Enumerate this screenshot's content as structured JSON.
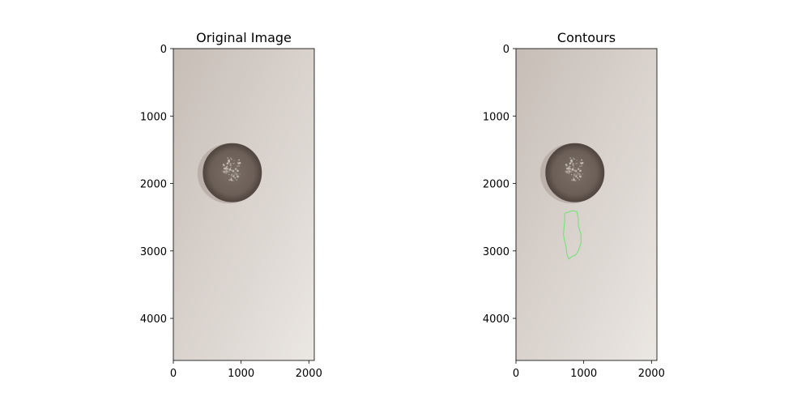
{
  "chart_data": [
    {
      "type": "image",
      "title": "Original Image",
      "xticks": [
        0,
        1000,
        2000
      ],
      "yticks": [
        0,
        1000,
        2000,
        3000,
        4000
      ],
      "xlim": [
        0,
        2080
      ],
      "ylim": [
        4624,
        0
      ],
      "content": {
        "coin": {
          "cx": 870,
          "cy": 1840,
          "r": 430
        },
        "contour": null
      }
    },
    {
      "type": "image",
      "title": "Contours",
      "xticks": [
        0,
        1000,
        2000
      ],
      "yticks": [
        0,
        1000,
        2000,
        3000,
        4000
      ],
      "xlim": [
        0,
        2080
      ],
      "ylim": [
        4624,
        0
      ],
      "content": {
        "coin": {
          "cx": 870,
          "cy": 1840,
          "r": 430
        },
        "contour": {
          "color": "#7fe07f",
          "points": [
            [
              720,
              2440
            ],
            [
              790,
              2420
            ],
            [
              840,
              2400
            ],
            [
              900,
              2420
            ],
            [
              920,
              2520
            ],
            [
              920,
              2620
            ],
            [
              960,
              2760
            ],
            [
              960,
              2880
            ],
            [
              920,
              3000
            ],
            [
              880,
              3060
            ],
            [
              830,
              3080
            ],
            [
              780,
              3120
            ],
            [
              750,
              3050
            ],
            [
              740,
              2940
            ],
            [
              720,
              2860
            ],
            [
              700,
              2760
            ],
            [
              710,
              2640
            ],
            [
              720,
              2540
            ]
          ]
        }
      }
    }
  ]
}
